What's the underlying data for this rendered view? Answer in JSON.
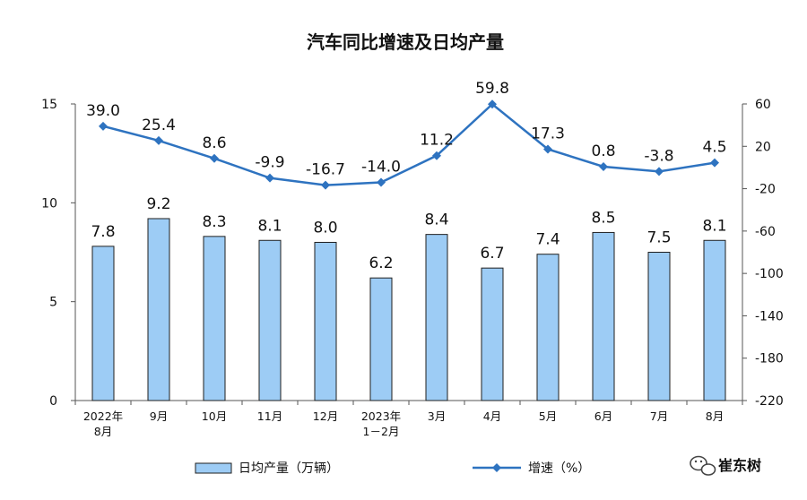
{
  "chart_data": {
    "type": "bar",
    "title": "汽车同比增速及日均产量",
    "categories": [
      [
        "2022年",
        "8月"
      ],
      [
        "9月"
      ],
      [
        "10月"
      ],
      [
        "11月"
      ],
      [
        "12月"
      ],
      [
        "2023年",
        "1－2月"
      ],
      [
        "3月"
      ],
      [
        "4月"
      ],
      [
        "5月"
      ],
      [
        "6月"
      ],
      [
        "7月"
      ],
      [
        "8月"
      ]
    ],
    "series": [
      {
        "name": "日均产量（万辆）",
        "type": "bar",
        "axis": "left",
        "values": [
          7.8,
          9.2,
          8.3,
          8.1,
          8.0,
          6.2,
          8.4,
          6.7,
          7.4,
          8.5,
          7.5,
          8.1
        ],
        "labels": [
          "7.8",
          "9.2",
          "8.3",
          "8.1",
          "8.0",
          "6.2",
          "8.4",
          "6.7",
          "7.4",
          "8.5",
          "7.5",
          "8.1"
        ],
        "color": "#9DCCF5",
        "stroke": "#1F1F1F"
      },
      {
        "name": "增速（%）",
        "type": "line",
        "axis": "right",
        "values": [
          39.0,
          25.4,
          8.6,
          -9.9,
          -16.7,
          -14.0,
          11.2,
          59.8,
          17.3,
          0.8,
          -3.8,
          4.5
        ],
        "labels": [
          "39.0",
          "25.4",
          "8.6",
          "-9.9",
          "-16.7",
          "-14.0",
          "11.2",
          "59.8",
          "17.3",
          "0.8",
          "-3.8",
          "4.5"
        ],
        "color": "#2E73C0"
      }
    ],
    "y_left": {
      "ylim": [
        0,
        15
      ],
      "ticks": [
        0,
        5,
        10,
        15
      ],
      "tick_labels": [
        "0",
        "5",
        "10",
        "15"
      ]
    },
    "y_right": {
      "ylim": [
        -220,
        60
      ],
      "ticks": [
        -220,
        -180,
        -140,
        -100,
        -60,
        -20,
        20,
        60
      ],
      "tick_labels": [
        "-220",
        "-180",
        "-140",
        "-100",
        "-60",
        "-20",
        "20",
        "60"
      ]
    },
    "grid": false,
    "legend": "bottom"
  },
  "watermark": {
    "text": "崔东树",
    "icon": "wechat-icon"
  }
}
